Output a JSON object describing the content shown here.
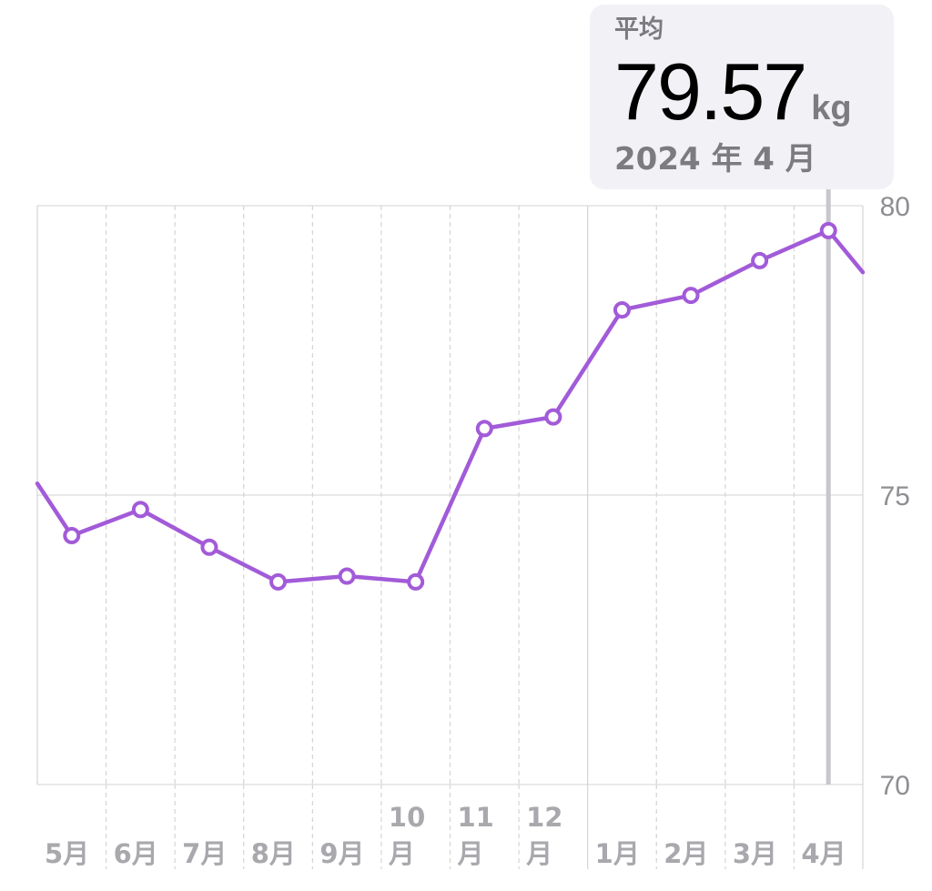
{
  "summary": {
    "label": "平均",
    "value": "79.57",
    "unit": "kg",
    "date": "2024 年 4 月"
  },
  "chart_data": {
    "type": "line",
    "x_labels": [
      {
        "text": "5月"
      },
      {
        "text": "6月"
      },
      {
        "text": "7月"
      },
      {
        "text": "8月"
      },
      {
        "text": "9月"
      },
      {
        "text": "10\n月"
      },
      {
        "text": "11\n月"
      },
      {
        "text": "12\n月"
      },
      {
        "text": "1月"
      },
      {
        "text": "2月"
      },
      {
        "text": "3月"
      },
      {
        "text": "4月"
      }
    ],
    "y_ticks": [
      "80",
      "75",
      "70"
    ],
    "ylim": [
      70,
      80
    ],
    "values": [
      74.3,
      74.75,
      74.1,
      73.5,
      73.6,
      73.5,
      76.15,
      76.35,
      78.2,
      78.45,
      79.05,
      79.57
    ],
    "edge_values": {
      "before": 75.2,
      "after": 78.85
    },
    "selected_index": 11,
    "line_color": "#a25bd8",
    "grid": true
  }
}
